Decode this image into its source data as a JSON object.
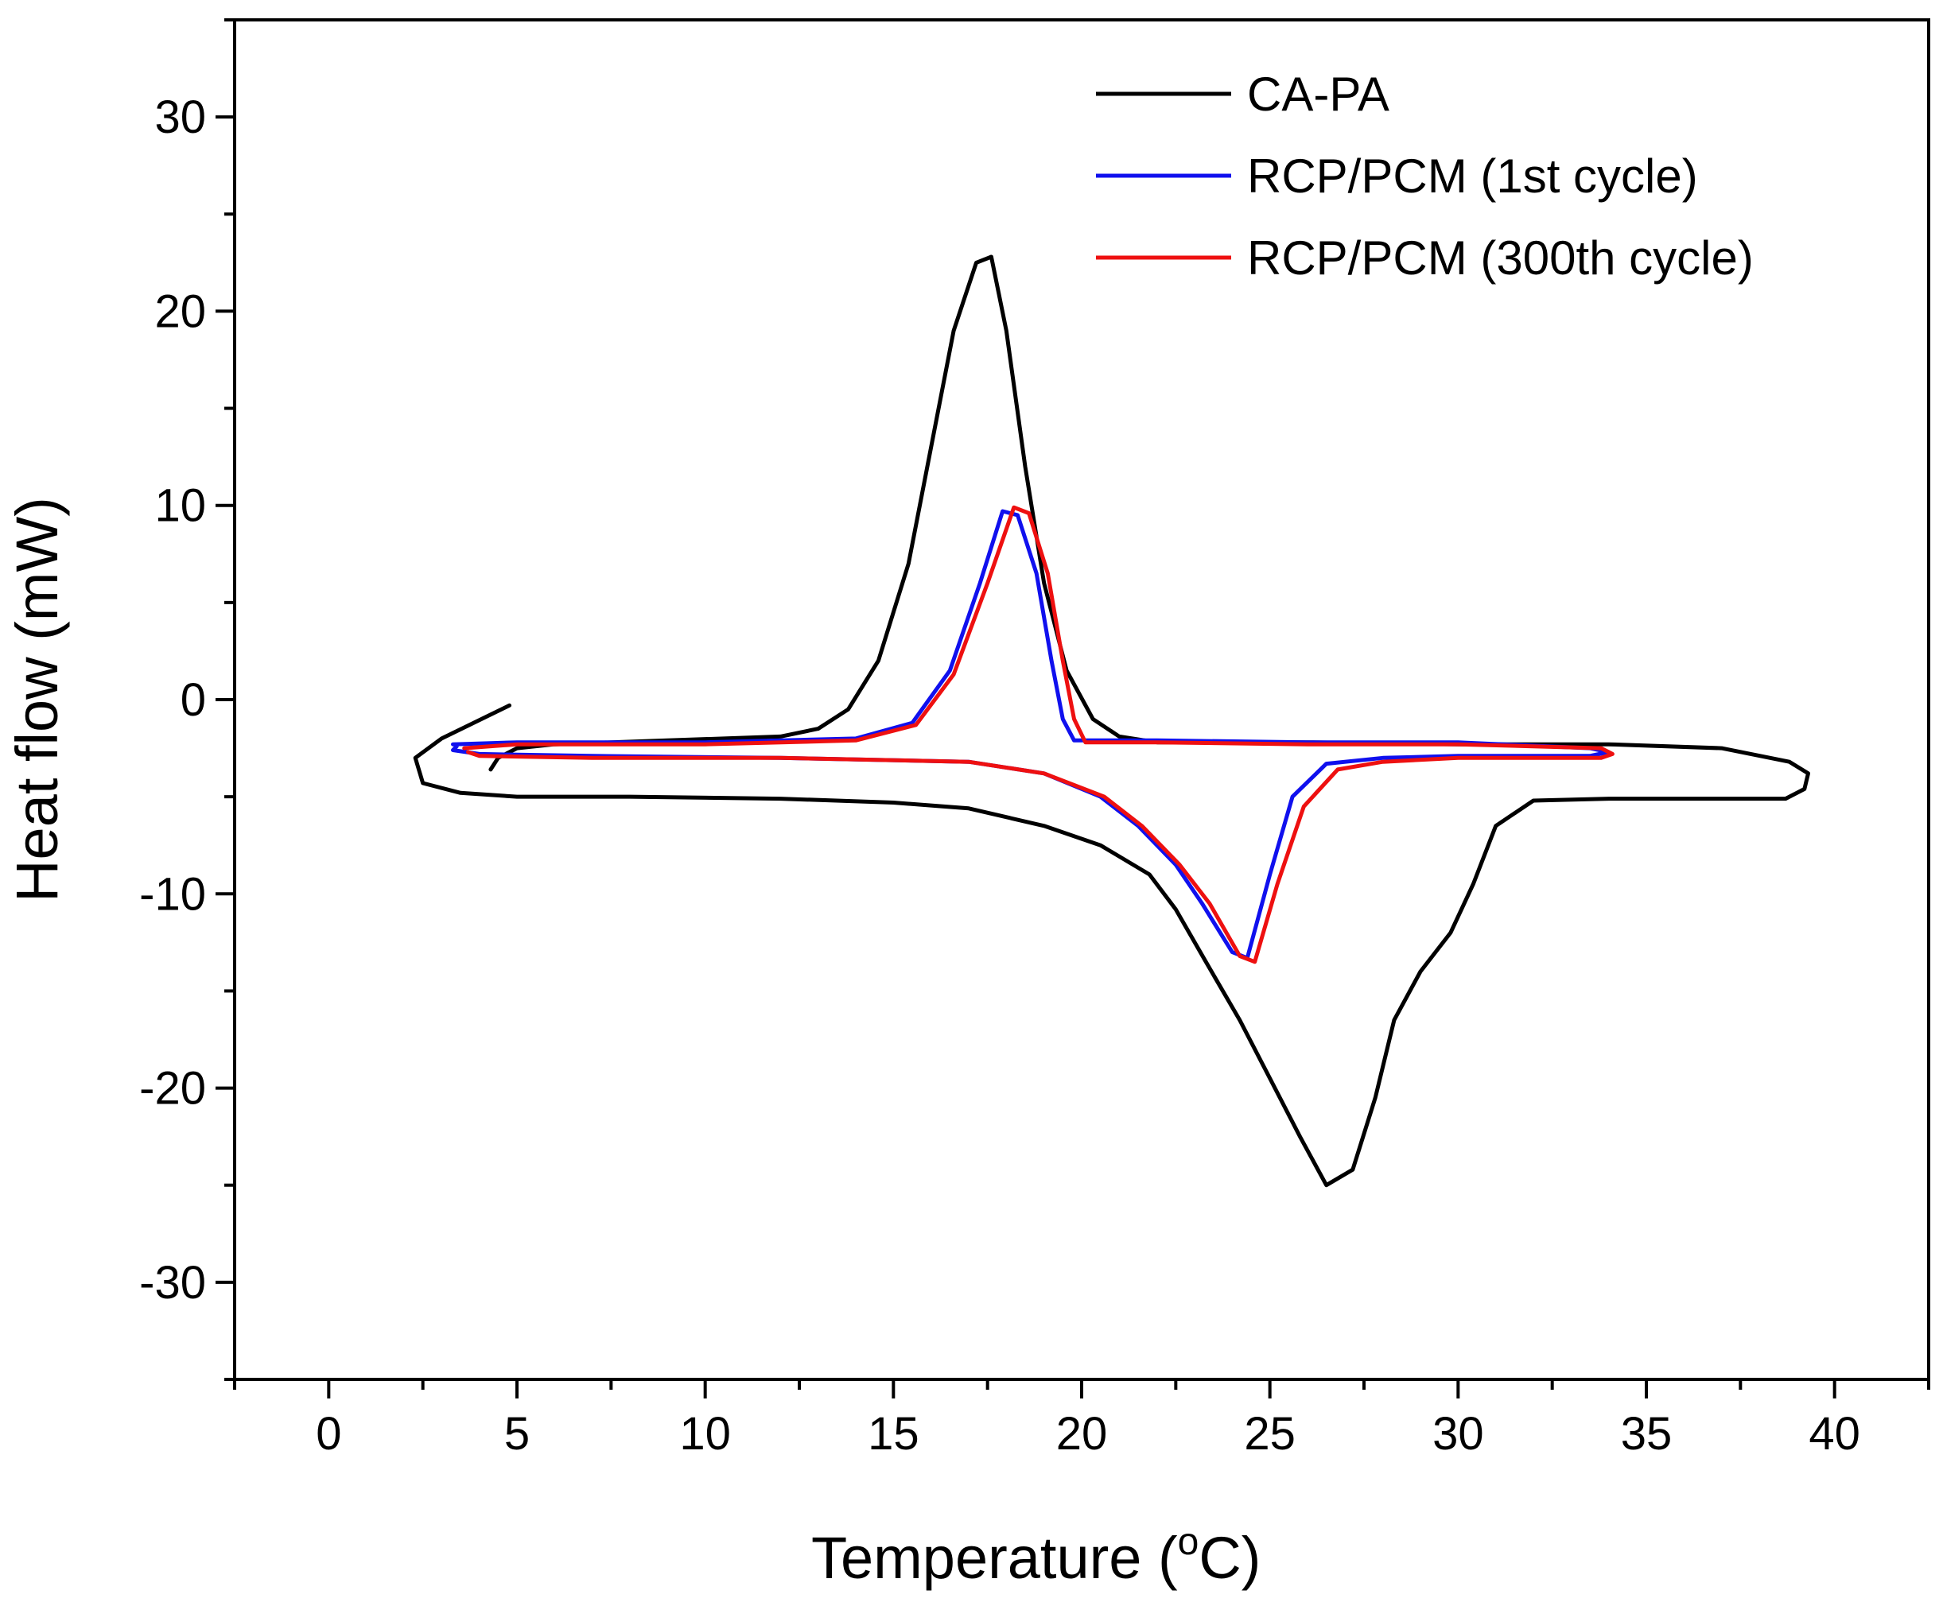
{
  "chart_data": {
    "type": "line",
    "title": "",
    "xlabel": "Temperature (",
    "xlabel_sup": "o",
    "xlabel_unit": "C)",
    "ylabel": "Heat flow (mW)",
    "xlim": [
      -2.5,
      42.5
    ],
    "ylim": [
      -35,
      35
    ],
    "xticks": [
      0,
      5,
      10,
      15,
      20,
      25,
      30,
      35,
      40
    ],
    "xtick_labels": [
      "0",
      "5",
      "10",
      "15",
      "20",
      "25",
      "30",
      "35",
      "40"
    ],
    "yticks": [
      -30,
      -20,
      -10,
      0,
      10,
      20,
      30
    ],
    "ytick_labels": [
      "-30",
      "-20",
      "-10",
      "0",
      "10",
      "20",
      "30"
    ],
    "legend_position": "top-right",
    "series": [
      {
        "name": "CA-PA",
        "color": "#000000",
        "points": [
          [
            4.8,
            -0.3
          ],
          [
            3.0,
            -2.0
          ],
          [
            2.3,
            -3.0
          ],
          [
            2.5,
            -4.3
          ],
          [
            3.5,
            -4.8
          ],
          [
            5,
            -5.0
          ],
          [
            8,
            -5.0
          ],
          [
            12,
            -5.1
          ],
          [
            15,
            -5.3
          ],
          [
            17,
            -5.6
          ],
          [
            19,
            -6.5
          ],
          [
            20.5,
            -7.5
          ],
          [
            21.8,
            -9.0
          ],
          [
            22.5,
            -10.8
          ],
          [
            23.3,
            -13.5
          ],
          [
            24.2,
            -16.5
          ],
          [
            25.0,
            -19.5
          ],
          [
            25.8,
            -22.5
          ],
          [
            26.5,
            -25.0
          ],
          [
            27.2,
            -24.2
          ],
          [
            27.8,
            -20.5
          ],
          [
            28.3,
            -16.5
          ],
          [
            29.0,
            -14.0
          ],
          [
            29.8,
            -12.0
          ],
          [
            30.4,
            -9.5
          ],
          [
            31.0,
            -6.5
          ],
          [
            32.0,
            -5.2
          ],
          [
            34,
            -5.1
          ],
          [
            37,
            -5.1
          ],
          [
            38.7,
            -5.1
          ],
          [
            39.2,
            -4.6
          ],
          [
            39.3,
            -3.8
          ],
          [
            38.8,
            -3.2
          ],
          [
            37.0,
            -2.5
          ],
          [
            34,
            -2.3
          ],
          [
            30,
            -2.3
          ],
          [
            26,
            -2.2
          ],
          [
            22,
            -2.2
          ],
          [
            21.0,
            -1.9
          ],
          [
            20.3,
            -1.0
          ],
          [
            19.6,
            1.5
          ],
          [
            19.0,
            6.0
          ],
          [
            18.5,
            12.0
          ],
          [
            18.0,
            19.0
          ],
          [
            17.6,
            22.8
          ],
          [
            17.2,
            22.5
          ],
          [
            16.6,
            19.0
          ],
          [
            16.0,
            13.0
          ],
          [
            15.4,
            7.0
          ],
          [
            14.6,
            2.0
          ],
          [
            13.8,
            -0.5
          ],
          [
            13.0,
            -1.5
          ],
          [
            12.0,
            -1.9
          ],
          [
            9.0,
            -2.1
          ],
          [
            6.0,
            -2.3
          ],
          [
            5.0,
            -2.5
          ],
          [
            4.5,
            -3.0
          ],
          [
            4.3,
            -3.6
          ]
        ]
      },
      {
        "name": "RCP/PCM (1st cycle)",
        "color": "#1010ee",
        "points": [
          [
            3.3,
            -2.3
          ],
          [
            5,
            -2.2
          ],
          [
            10,
            -2.2
          ],
          [
            14,
            -2.0
          ],
          [
            15.5,
            -1.2
          ],
          [
            16.5,
            1.5
          ],
          [
            17.3,
            6.0
          ],
          [
            17.9,
            9.7
          ],
          [
            18.3,
            9.5
          ],
          [
            18.8,
            6.5
          ],
          [
            19.2,
            2.0
          ],
          [
            19.5,
            -1.0
          ],
          [
            19.8,
            -2.1
          ],
          [
            22,
            -2.1
          ],
          [
            26,
            -2.2
          ],
          [
            30,
            -2.2
          ],
          [
            33.5,
            -2.5
          ],
          [
            34.0,
            -2.7
          ],
          [
            33.5,
            -2.9
          ],
          [
            30,
            -2.9
          ],
          [
            28,
            -3.0
          ],
          [
            26.5,
            -3.3
          ],
          [
            25.6,
            -5.0
          ],
          [
            25.0,
            -9.0
          ],
          [
            24.4,
            -13.3
          ],
          [
            24.0,
            -13.0
          ],
          [
            23.2,
            -10.5
          ],
          [
            22.5,
            -8.5
          ],
          [
            21.5,
            -6.5
          ],
          [
            20.5,
            -5.0
          ],
          [
            19,
            -3.8
          ],
          [
            17,
            -3.2
          ],
          [
            12,
            -3.0
          ],
          [
            7,
            -2.9
          ],
          [
            4,
            -2.8
          ],
          [
            3.3,
            -2.6
          ],
          [
            3.4,
            -2.4
          ]
        ]
      },
      {
        "name": "RCP/PCM (300th cycle)",
        "color": "#ee1010",
        "points": [
          [
            3.6,
            -2.5
          ],
          [
            5,
            -2.3
          ],
          [
            10,
            -2.3
          ],
          [
            14,
            -2.1
          ],
          [
            15.6,
            -1.3
          ],
          [
            16.6,
            1.3
          ],
          [
            17.5,
            6.0
          ],
          [
            18.2,
            9.9
          ],
          [
            18.6,
            9.6
          ],
          [
            19.1,
            6.5
          ],
          [
            19.5,
            2.0
          ],
          [
            19.8,
            -1.0
          ],
          [
            20.1,
            -2.2
          ],
          [
            22,
            -2.2
          ],
          [
            26,
            -2.3
          ],
          [
            30,
            -2.3
          ],
          [
            33.8,
            -2.5
          ],
          [
            34.1,
            -2.8
          ],
          [
            33.8,
            -3.0
          ],
          [
            30,
            -3.0
          ],
          [
            28,
            -3.2
          ],
          [
            26.8,
            -3.6
          ],
          [
            25.9,
            -5.5
          ],
          [
            25.2,
            -9.5
          ],
          [
            24.6,
            -13.5
          ],
          [
            24.2,
            -13.2
          ],
          [
            23.4,
            -10.5
          ],
          [
            22.6,
            -8.5
          ],
          [
            21.6,
            -6.5
          ],
          [
            20.6,
            -5.0
          ],
          [
            19,
            -3.8
          ],
          [
            17,
            -3.2
          ],
          [
            12,
            -3.0
          ],
          [
            7,
            -3.0
          ],
          [
            4,
            -2.9
          ],
          [
            3.7,
            -2.7
          ]
        ]
      }
    ]
  }
}
